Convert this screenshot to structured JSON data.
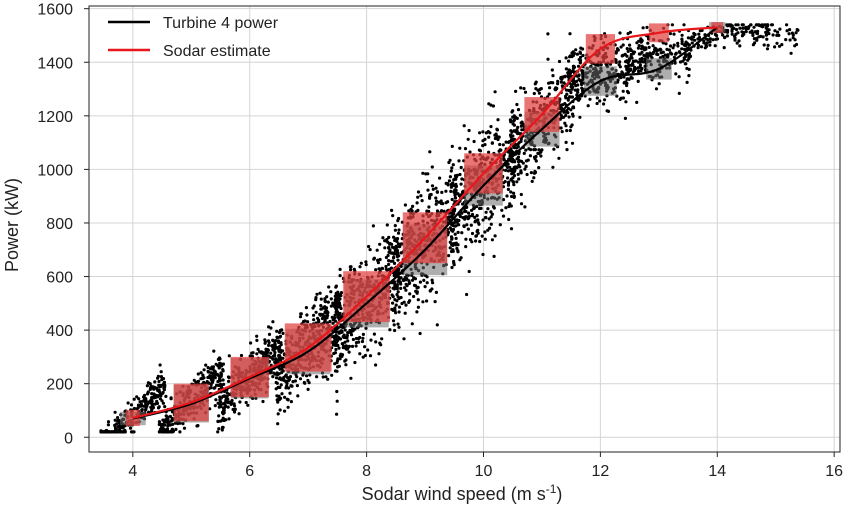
{
  "chart_data": {
    "type": "scatter",
    "xlabel": "Sodar wind speed (m s",
    "xlabel_sup": "-1",
    "xlabel_close": ")",
    "ylabel": "Power (kW)",
    "xlim": [
      3.25,
      16.1
    ],
    "ylim": [
      -55,
      1610
    ],
    "xticks": [
      4,
      6,
      8,
      10,
      12,
      14,
      16
    ],
    "yticks": [
      0,
      200,
      400,
      600,
      800,
      1000,
      1200,
      1400,
      1600
    ],
    "grid": true,
    "legend_position": "top-left",
    "legend": [
      {
        "label": "Turbine 4 power",
        "color": "#000000"
      },
      {
        "label": "Sodar estimate",
        "color": "#e8171c"
      }
    ],
    "series": [
      {
        "name": "Turbine 4 power",
        "type": "line",
        "color": "#000000",
        "x": [
          4.0,
          5.0,
          6.0,
          7.0,
          8.0,
          9.0,
          10.0,
          11.0,
          12.0,
          13.0,
          14.0
        ],
        "y": [
          70,
          125,
          220,
          320,
          500,
          700,
          940,
          1150,
          1330,
          1375,
          1530
        ],
        "boxes_half_width_x": [
          0.22,
          0.3,
          0.32,
          0.38,
          0.38,
          0.38,
          0.33,
          0.3,
          0.28,
          0.22,
          0.14
        ],
        "boxes_half_height_y": [
          25,
          70,
          75,
          85,
          90,
          95,
          75,
          65,
          55,
          40,
          20
        ]
      },
      {
        "name": "Sodar estimate",
        "type": "line",
        "color": "#e8171c",
        "x": [
          4.0,
          5.0,
          6.0,
          7.0,
          8.0,
          9.0,
          10.0,
          11.0,
          12.0,
          13.0,
          14.0
        ],
        "y": [
          72,
          130,
          225,
          335,
          525,
          745,
          985,
          1205,
          1450,
          1510,
          1530
        ],
        "boxes_half_width_x": [
          0.12,
          0.3,
          0.33,
          0.4,
          0.4,
          0.38,
          0.33,
          0.3,
          0.25,
          0.17,
          0.1
        ],
        "boxes_half_height_y": [
          30,
          70,
          75,
          90,
          95,
          95,
          75,
          65,
          55,
          35,
          20
        ]
      },
      {
        "name": "",
        "type": "scatter",
        "color": "#000000",
        "clusters": [
          {
            "x": 4.0,
            "x_spread": 0.55,
            "y": 80,
            "y_spread": 55,
            "n": 260
          },
          {
            "x": 5.0,
            "x_spread": 0.55,
            "y": 130,
            "y_spread": 70,
            "n": 320
          },
          {
            "x": 6.0,
            "x_spread": 0.55,
            "y": 225,
            "y_spread": 90,
            "n": 360
          },
          {
            "x": 7.0,
            "x_spread": 0.55,
            "y": 330,
            "y_spread": 130,
            "n": 420
          },
          {
            "x": 8.0,
            "x_spread": 0.55,
            "y": 510,
            "y_spread": 170,
            "n": 460
          },
          {
            "x": 9.0,
            "x_spread": 0.55,
            "y": 720,
            "y_spread": 190,
            "n": 460
          },
          {
            "x": 10.0,
            "x_spread": 0.55,
            "y": 950,
            "y_spread": 190,
            "n": 420
          },
          {
            "x": 11.0,
            "x_spread": 0.55,
            "y": 1170,
            "y_spread": 160,
            "n": 360
          },
          {
            "x": 12.0,
            "x_spread": 0.55,
            "y": 1360,
            "y_spread": 110,
            "n": 320
          },
          {
            "x": 13.0,
            "x_spread": 0.55,
            "y": 1420,
            "y_spread": 90,
            "n": 220
          },
          {
            "x": 14.2,
            "x_spread": 0.7,
            "y": 1510,
            "y_spread": 40,
            "n": 140
          },
          {
            "x": 15.0,
            "x_spread": 0.4,
            "y": 1490,
            "y_spread": 60,
            "n": 40
          }
        ]
      }
    ]
  }
}
